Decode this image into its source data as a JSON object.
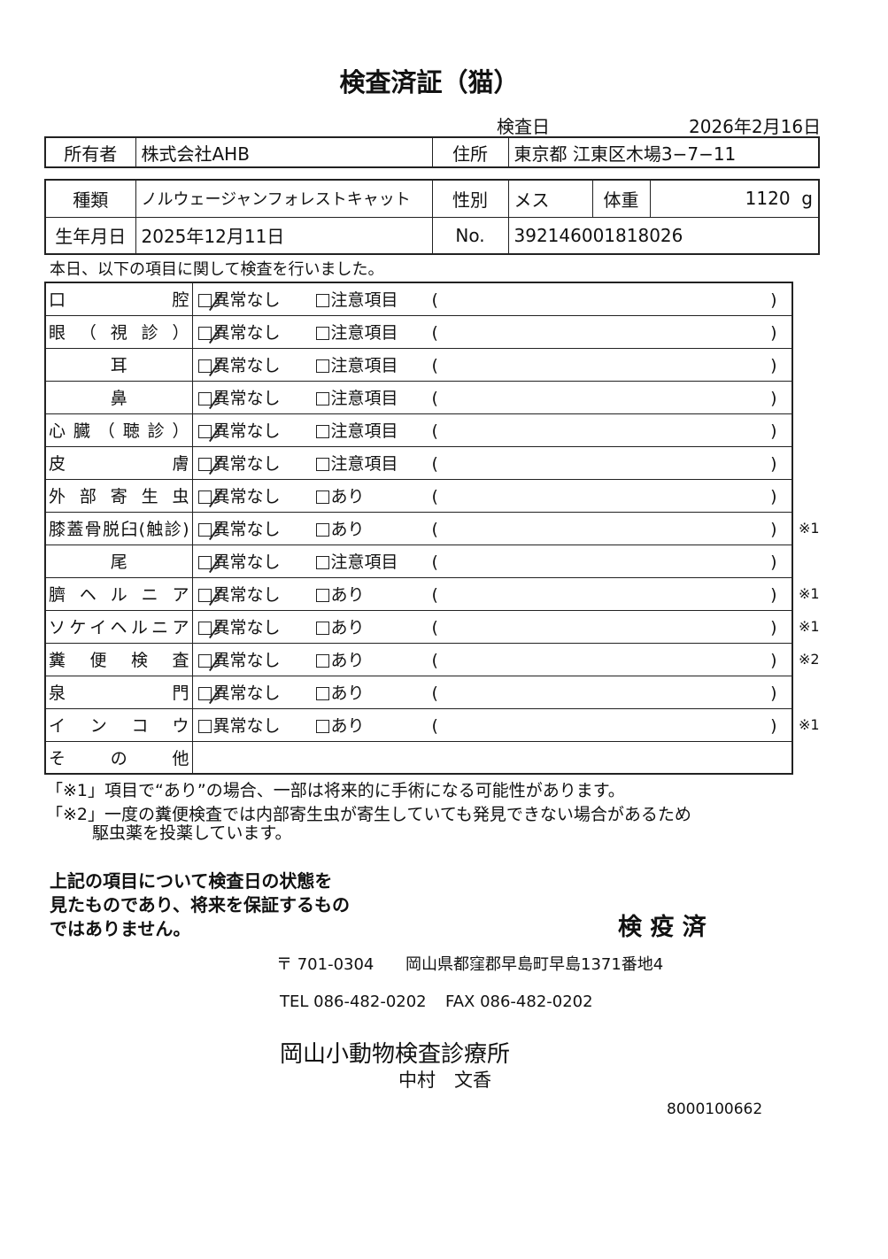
{
  "title": "検査済証（猫）",
  "exam_date_label": "検査日",
  "exam_date": "2026年2月16日",
  "owner": {
    "label": "所有者",
    "value": "株式会社AHB",
    "address_label": "住所",
    "address": "東京都 江東区木場3−7−11"
  },
  "pet": {
    "breed_label": "種類",
    "breed": "ノルウェージャンフォレストキャット",
    "sex_label": "性別",
    "sex": "メス",
    "weight_label": "体重",
    "weight": "1120",
    "weight_unit": "g",
    "dob_label": "生年月日",
    "dob": "2025年12月11日",
    "no_label": "No.",
    "no": "392146001818026"
  },
  "intro": "本日、以下の項目に関して検査を行いました。",
  "normal_label": "異常なし",
  "rows": [
    {
      "label": "口腔",
      "opt2": "注意項目",
      "checked": true,
      "note": ""
    },
    {
      "label": "眼（視診）",
      "opt2": "注意項目",
      "checked": true,
      "note": ""
    },
    {
      "label": "耳",
      "opt2": "注意項目",
      "checked": true,
      "note": "",
      "center": true
    },
    {
      "label": "鼻",
      "opt2": "注意項目",
      "checked": true,
      "note": "",
      "center": true
    },
    {
      "label": "心臓（聴診）",
      "opt2": "注意項目",
      "checked": true,
      "note": ""
    },
    {
      "label": "皮膚",
      "opt2": "注意項目",
      "checked": true,
      "note": ""
    },
    {
      "label": "外部寄生虫",
      "opt2": "あり",
      "checked": true,
      "note": ""
    },
    {
      "label": "膝蓋骨脱臼(触診)",
      "opt2": "あり",
      "checked": true,
      "note": "※1"
    },
    {
      "label": "尾",
      "opt2": "注意項目",
      "checked": true,
      "note": "",
      "center": true
    },
    {
      "label": "臍ヘルニア",
      "opt2": "あり",
      "checked": true,
      "note": "※1"
    },
    {
      "label": "ソケイヘルニア",
      "opt2": "あり",
      "checked": true,
      "note": "※1"
    },
    {
      "label": "糞便検査",
      "opt2": "あり",
      "checked": true,
      "note": "※2"
    },
    {
      "label": "泉門",
      "opt2": "あり",
      "checked": true,
      "note": ""
    },
    {
      "label": "インコウ",
      "opt2": "あり",
      "checked": false,
      "note": "※1"
    }
  ],
  "other_label": "その他",
  "footnote1": "「※1」項目で“あり”の場合、一部は将来的に手術になる可能性があります。",
  "footnote2a": "「※2」一度の糞便検査では内部寄生虫が寄生していても発見できない場合があるため",
  "footnote2b": "駆虫薬を投薬しています。",
  "disclaimer": [
    "上記の項目について検査日の状態を",
    "見たものであり、将来を保証するもの",
    "ではありません。"
  ],
  "stamp": "検 疫 済",
  "postal": "〒 701-0304",
  "address": "岡山県都窪郡早島町早島1371番地4",
  "tel": "TEL 086-482-0202",
  "fax": "FAX 086-482-0202",
  "clinic": "岡山小動物検査診療所",
  "doctor": "中村　文香",
  "serial": "8000100662"
}
